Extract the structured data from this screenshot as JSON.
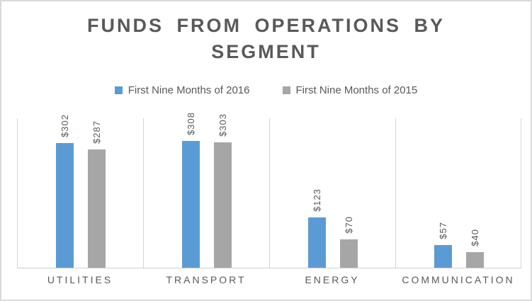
{
  "chart_data": {
    "type": "bar",
    "title": "FUNDS FROM OPERATIONS BY SEGMENT",
    "categories": [
      "UTILITIES",
      "TRANSPORT",
      "ENERGY",
      "COMMUNICATION"
    ],
    "series": [
      {
        "name": "First Nine Months of 2016",
        "color": "#5B9BD5",
        "values": [
          302,
          308,
          123,
          57
        ],
        "labels": [
          "$302",
          "$308",
          "$123",
          "$57"
        ]
      },
      {
        "name": "First Nine Months of 2015",
        "color": "#A6A6A6",
        "values": [
          287,
          303,
          70,
          40
        ],
        "labels": [
          "$287",
          "$303",
          "$70",
          "$40"
        ]
      }
    ],
    "data_label_format": "$#,##0",
    "data_label_rotation": "vertical-bottom-to-top",
    "ylim": [
      0,
      360
    ],
    "y_axis_labels_shown": false,
    "grid": "vertical-category-boundaries",
    "legend_position": "top",
    "colors": {
      "series_2016": "#5B9BD5",
      "series_2015": "#A6A6A6",
      "gridline": "#D6D6D6",
      "axis_line": "#CFCFCF",
      "text": "#595959",
      "canvas_border": "#D9D9D9",
      "background": "#FFFFFF"
    }
  }
}
